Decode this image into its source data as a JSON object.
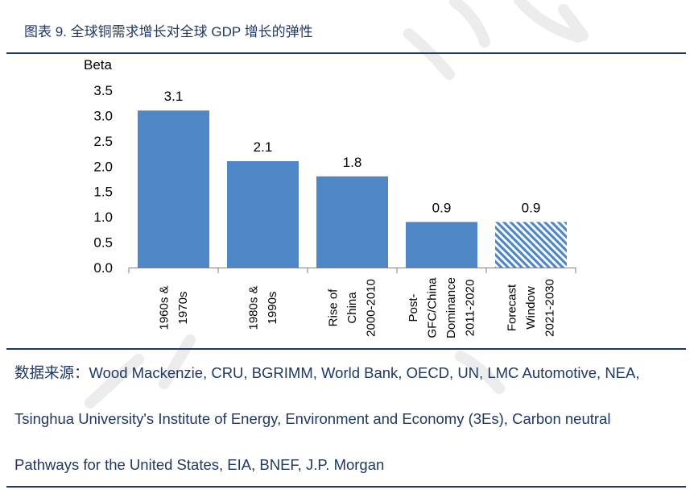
{
  "title": "图表 9. 全球铜需求增长对全球 GDP 增长的弹性",
  "theme": {
    "accent": "#1f3864"
  },
  "chart_data": {
    "type": "bar",
    "ylabel": "Beta",
    "xlabel": "",
    "ylim": [
      0,
      3.5
    ],
    "yticks": [
      "0.0",
      "0.5",
      "1.0",
      "1.5",
      "2.0",
      "2.5",
      "3.0",
      "3.5"
    ],
    "categories": [
      [
        "1960s &",
        "1970s"
      ],
      [
        "1980s &",
        "1990s"
      ],
      [
        "Rise of",
        "China",
        "2000-2010"
      ],
      [
        "Post-",
        "GFC/China",
        "Dominance",
        "2011-2020"
      ],
      [
        "Forecast",
        "Window",
        "2021-2030"
      ]
    ],
    "values": [
      3.1,
      2.1,
      1.8,
      0.9,
      0.9
    ],
    "data_labels": [
      "3.1",
      "2.1",
      "1.8",
      "0.9",
      "0.9"
    ],
    "bar_colors": [
      "#4f86c6",
      "#4f86c6",
      "#4f86c6",
      "#4f86c6",
      "#4f86c6"
    ],
    "hatched": [
      false,
      false,
      false,
      false,
      true
    ],
    "grid": false
  },
  "source": {
    "lines": [
      "数据来源：Wood Mackenzie, CRU, BGRIMM, World Bank, OECD, UN, LMC Automotive, NEA,",
      "Tsinghua University's Institute of Energy, Environment and Economy (3Es), Carbon neutral",
      "Pathways for the United States, EIA, BNEF, J.P. Morgan"
    ]
  }
}
